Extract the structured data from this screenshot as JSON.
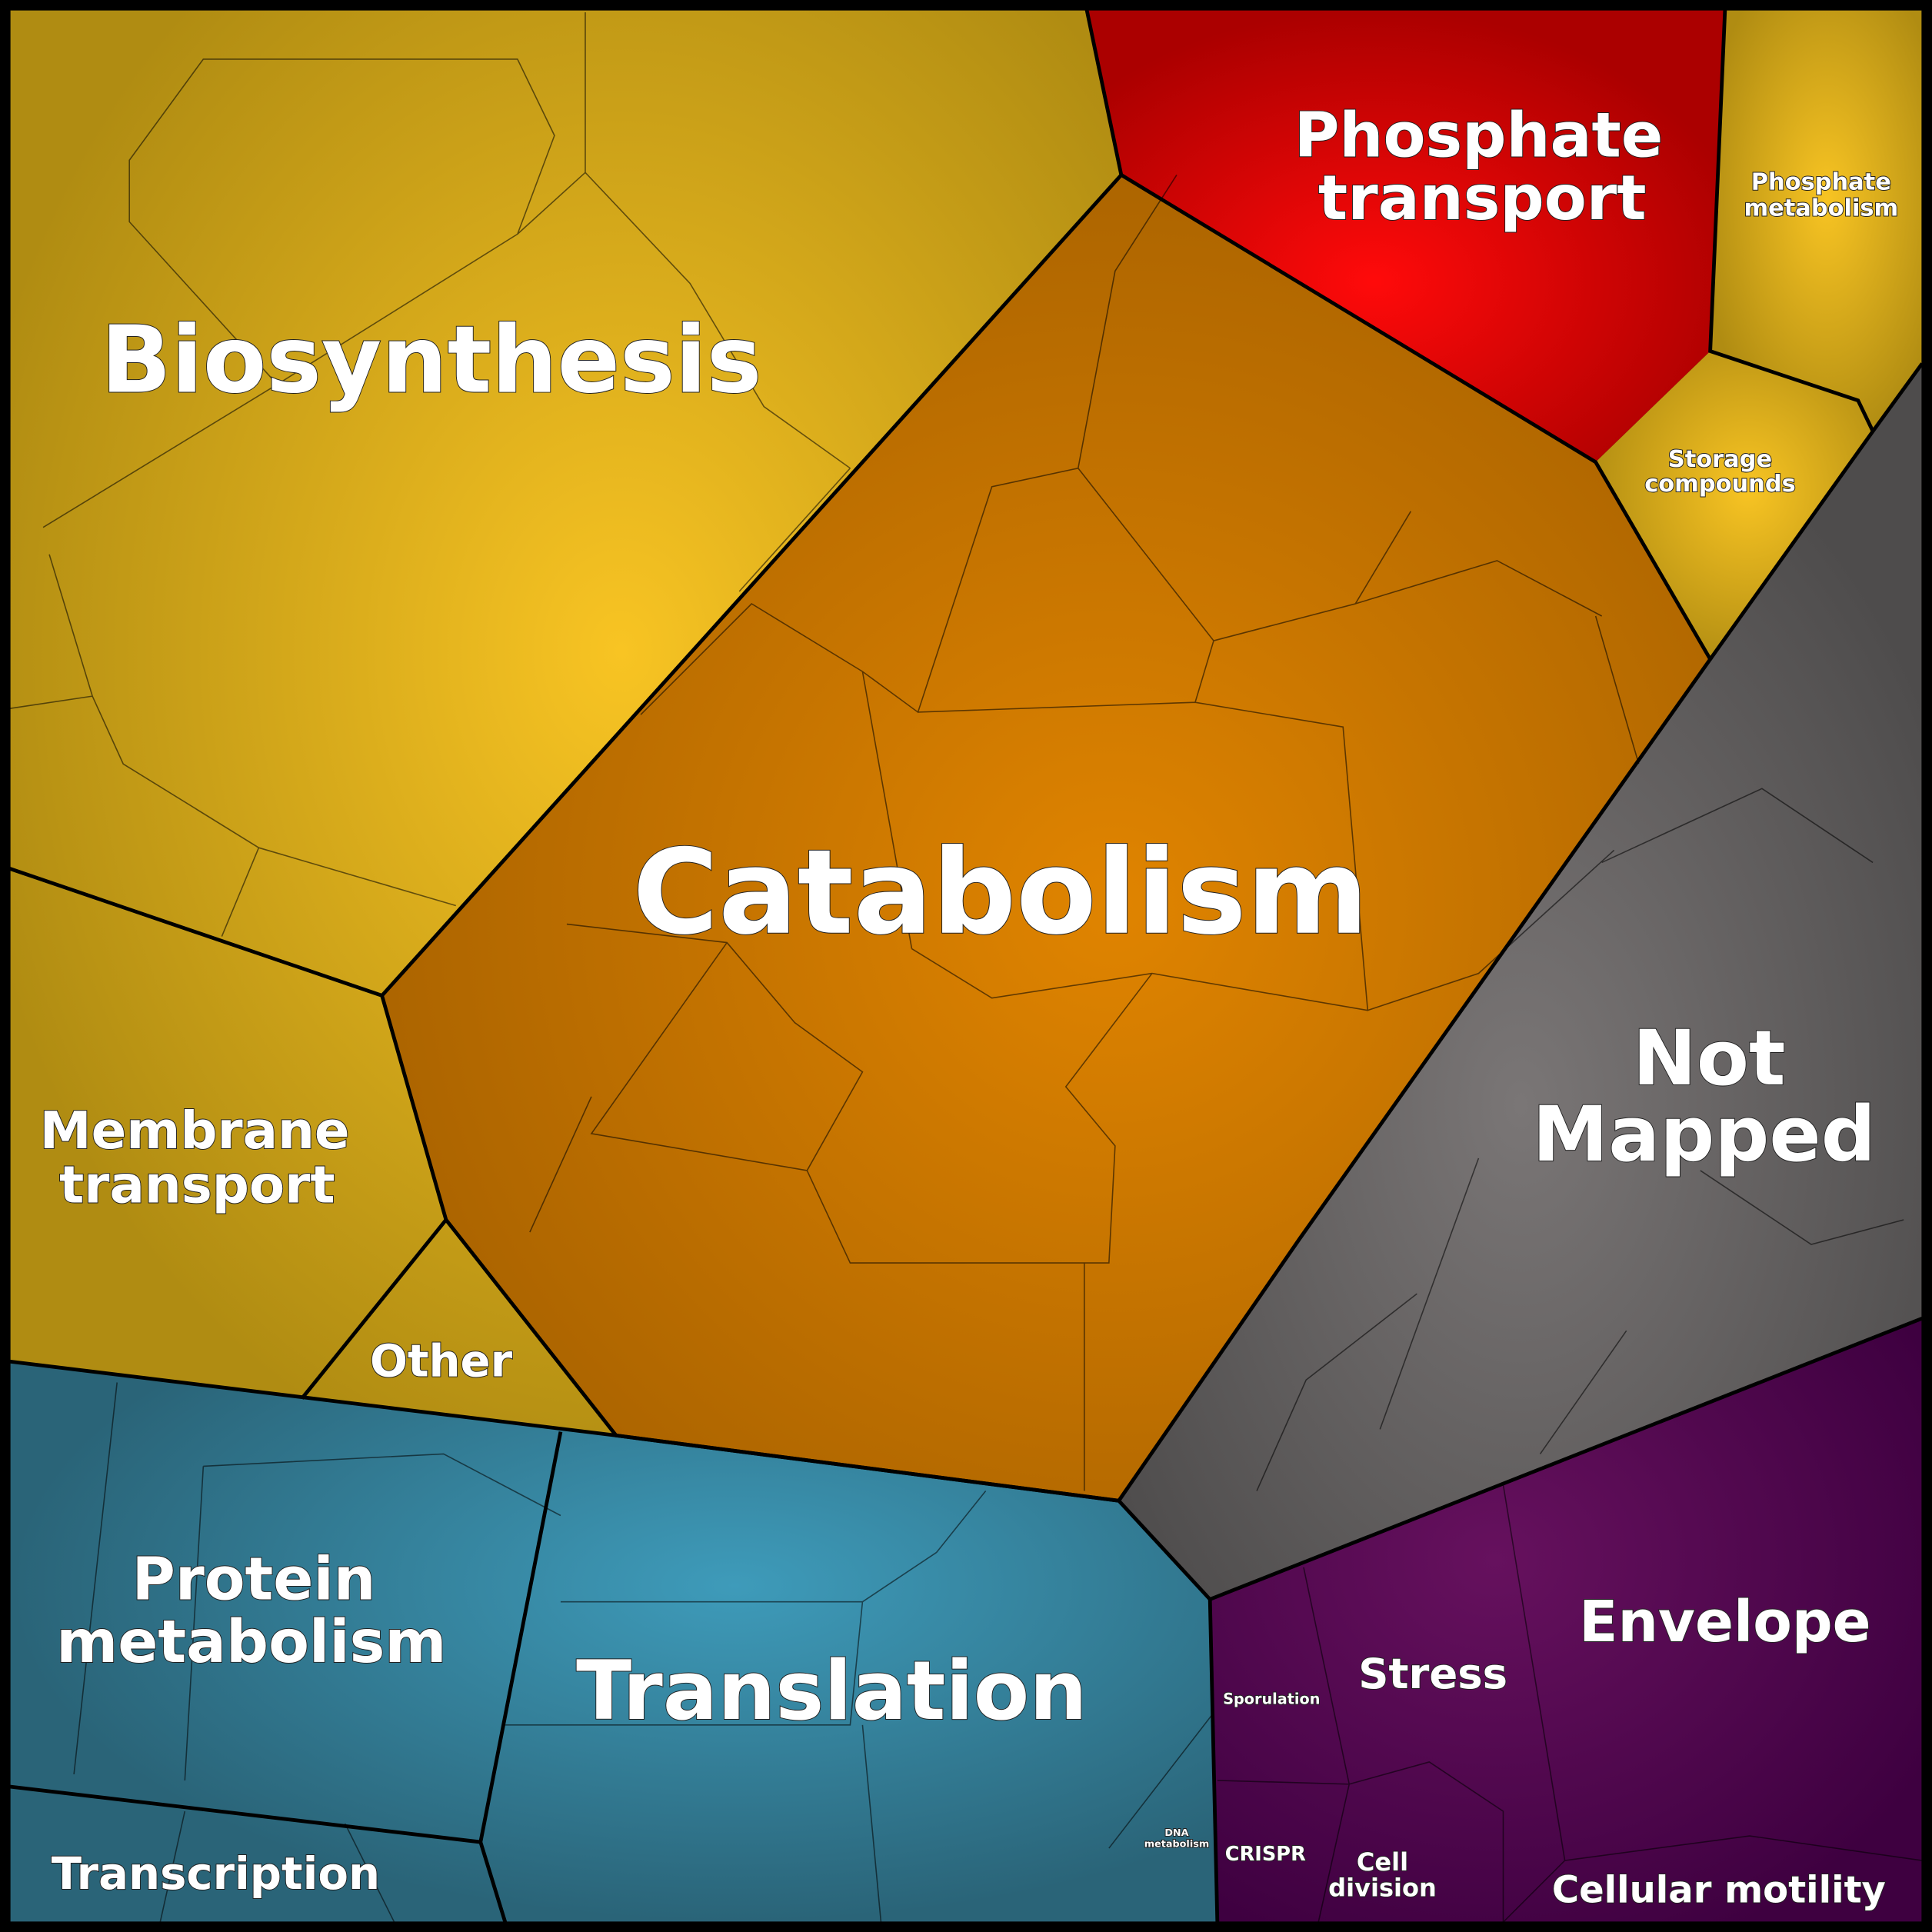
{
  "regions": [
    {
      "label": [
        "Biosynthesis"
      ]
    },
    {
      "label": [
        "Phosphate",
        "transport"
      ]
    },
    {
      "label": [
        "Phosphate",
        "metabolism"
      ]
    },
    {
      "label": [
        "Storage",
        "compounds"
      ]
    },
    {
      "label": [
        "Catabolism"
      ]
    },
    {
      "label": [
        "Not",
        "Mapped"
      ]
    },
    {
      "label": [
        "Membrane",
        "transport"
      ]
    },
    {
      "label": [
        "Other"
      ]
    },
    {
      "label": [
        "Protein",
        "metabolism"
      ]
    },
    {
      "label": [
        "Translation"
      ]
    },
    {
      "label": [
        "Transcription"
      ]
    },
    {
      "label": [
        "Envelope"
      ]
    },
    {
      "label": [
        "Stress"
      ]
    },
    {
      "label": [
        "Sporulation"
      ]
    },
    {
      "label": [
        "CRISPR"
      ]
    },
    {
      "label": [
        "Cell",
        "division"
      ]
    },
    {
      "label": [
        "Cellular motility"
      ]
    },
    {
      "label": [
        "DNA",
        "metabolism"
      ]
    }
  ]
}
